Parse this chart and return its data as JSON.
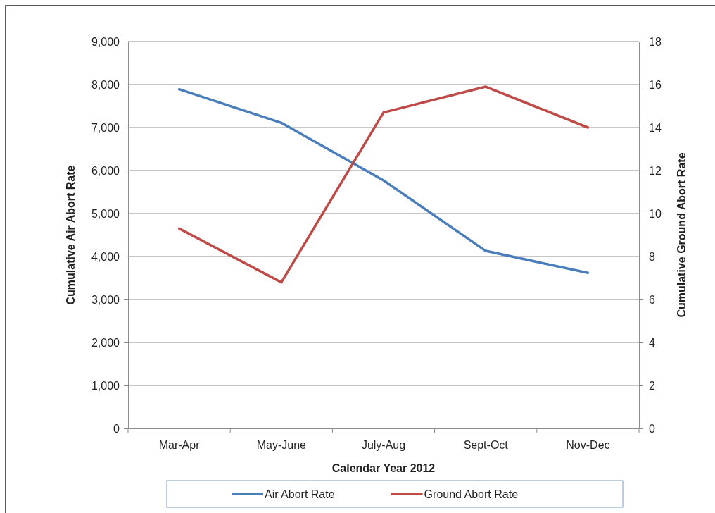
{
  "chart_data": {
    "type": "line",
    "xlabel": "Calendar Year 2012",
    "ylabel": "Cumulative Air Abort Rate",
    "y2label": "Cumulative Ground Abort Rate",
    "categories": [
      "Mar-Apr",
      "May-June",
      "July-Aug",
      "Sept-Oct",
      "Nov-Dec"
    ],
    "series": [
      {
        "name": "Air Abort Rate",
        "color": "#4a7ebb",
        "values": [
          7890,
          7110,
          5770,
          4130,
          3620
        ]
      },
      {
        "name": "Ground Abort Rate",
        "color": "#be4b48",
        "axis": "y2",
        "values": [
          9.3,
          6.8,
          14.7,
          15.9,
          14.0
        ]
      }
    ],
    "ylim": [
      0,
      9000
    ],
    "yticks": [
      {
        "value": 0,
        "label": "0"
      },
      {
        "value": 1000,
        "label": "1,000"
      },
      {
        "value": 2000,
        "label": "2,000"
      },
      {
        "value": 3000,
        "label": "3,000"
      },
      {
        "value": 4000,
        "label": "4,000"
      },
      {
        "value": 5000,
        "label": "5,000"
      },
      {
        "value": 6000,
        "label": "6,000"
      },
      {
        "value": 7000,
        "label": "7,000"
      },
      {
        "value": 8000,
        "label": "8,000"
      },
      {
        "value": 9000,
        "label": "9,000"
      }
    ],
    "y2lim": [
      0,
      18
    ],
    "y2ticks": [
      0,
      2,
      4,
      6,
      8,
      10,
      12,
      14,
      16,
      18
    ],
    "grid": "y",
    "legend": "bottom",
    "marker": "none",
    "line_style": "solid"
  }
}
